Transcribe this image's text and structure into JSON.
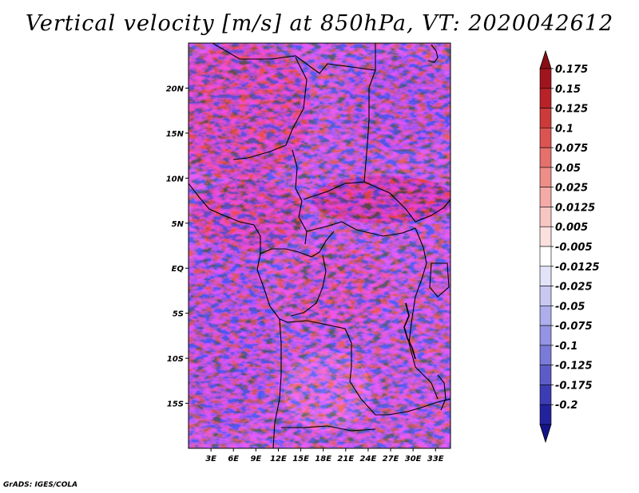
{
  "title": "Vertical velocity [m/s] at 850hPa, VT: 2020042612",
  "footer": "GrADS: IGES/COLA",
  "map": {
    "lon_range": [
      0,
      35
    ],
    "lat_range": [
      -20,
      25
    ],
    "field_description": "speckled red/blue vertical velocity field over Central Africa",
    "lat_ticks": [
      {
        "value": 20,
        "label": "20N"
      },
      {
        "value": 15,
        "label": "15N"
      },
      {
        "value": 10,
        "label": "10N"
      },
      {
        "value": 5,
        "label": "5N"
      },
      {
        "value": 0,
        "label": "EQ"
      },
      {
        "value": -5,
        "label": "5S"
      },
      {
        "value": -10,
        "label": "10S"
      },
      {
        "value": -15,
        "label": "15S"
      }
    ],
    "lon_ticks": [
      {
        "value": 3,
        "label": "3E"
      },
      {
        "value": 6,
        "label": "6E"
      },
      {
        "value": 9,
        "label": "9E"
      },
      {
        "value": 12,
        "label": "12E"
      },
      {
        "value": 15,
        "label": "15E"
      },
      {
        "value": 18,
        "label": "18E"
      },
      {
        "value": 21,
        "label": "21E"
      },
      {
        "value": 24,
        "label": "24E"
      },
      {
        "value": 27,
        "label": "27E"
      },
      {
        "value": 30,
        "label": "30E"
      },
      {
        "value": 33,
        "label": "33E"
      }
    ]
  },
  "colorbar": {
    "levels": [
      {
        "label": "0.175",
        "color": "#a0141e"
      },
      {
        "label": "0.15",
        "color": "#b82228"
      },
      {
        "label": "0.125",
        "color": "#cc3a3a"
      },
      {
        "label": "0.1",
        "color": "#dc5452"
      },
      {
        "label": "0.075",
        "color": "#e6706c"
      },
      {
        "label": "0.05",
        "color": "#ee8e88"
      },
      {
        "label": "0.025",
        "color": "#f4aaa6"
      },
      {
        "label": "0.0125",
        "color": "#f8c6c2"
      },
      {
        "label": "0.005",
        "color": "#fbe0de"
      },
      {
        "label": "-0.005",
        "color": "#ffffff"
      },
      {
        "label": "-0.0125",
        "color": "#e2e2f8"
      },
      {
        "label": "-0.025",
        "color": "#c8c8f2"
      },
      {
        "label": "-0.05",
        "color": "#aeaeec"
      },
      {
        "label": "-0.075",
        "color": "#9494e4"
      },
      {
        "label": "-0.1",
        "color": "#7a7ad8"
      },
      {
        "label": "-0.125",
        "color": "#5c5cc8"
      },
      {
        "label": "-0.175",
        "color": "#3c3cb4"
      },
      {
        "label": "-0.2",
        "color": "#22229c"
      }
    ],
    "top_color": "#8a0e16",
    "bottom_color": "#14148a"
  }
}
